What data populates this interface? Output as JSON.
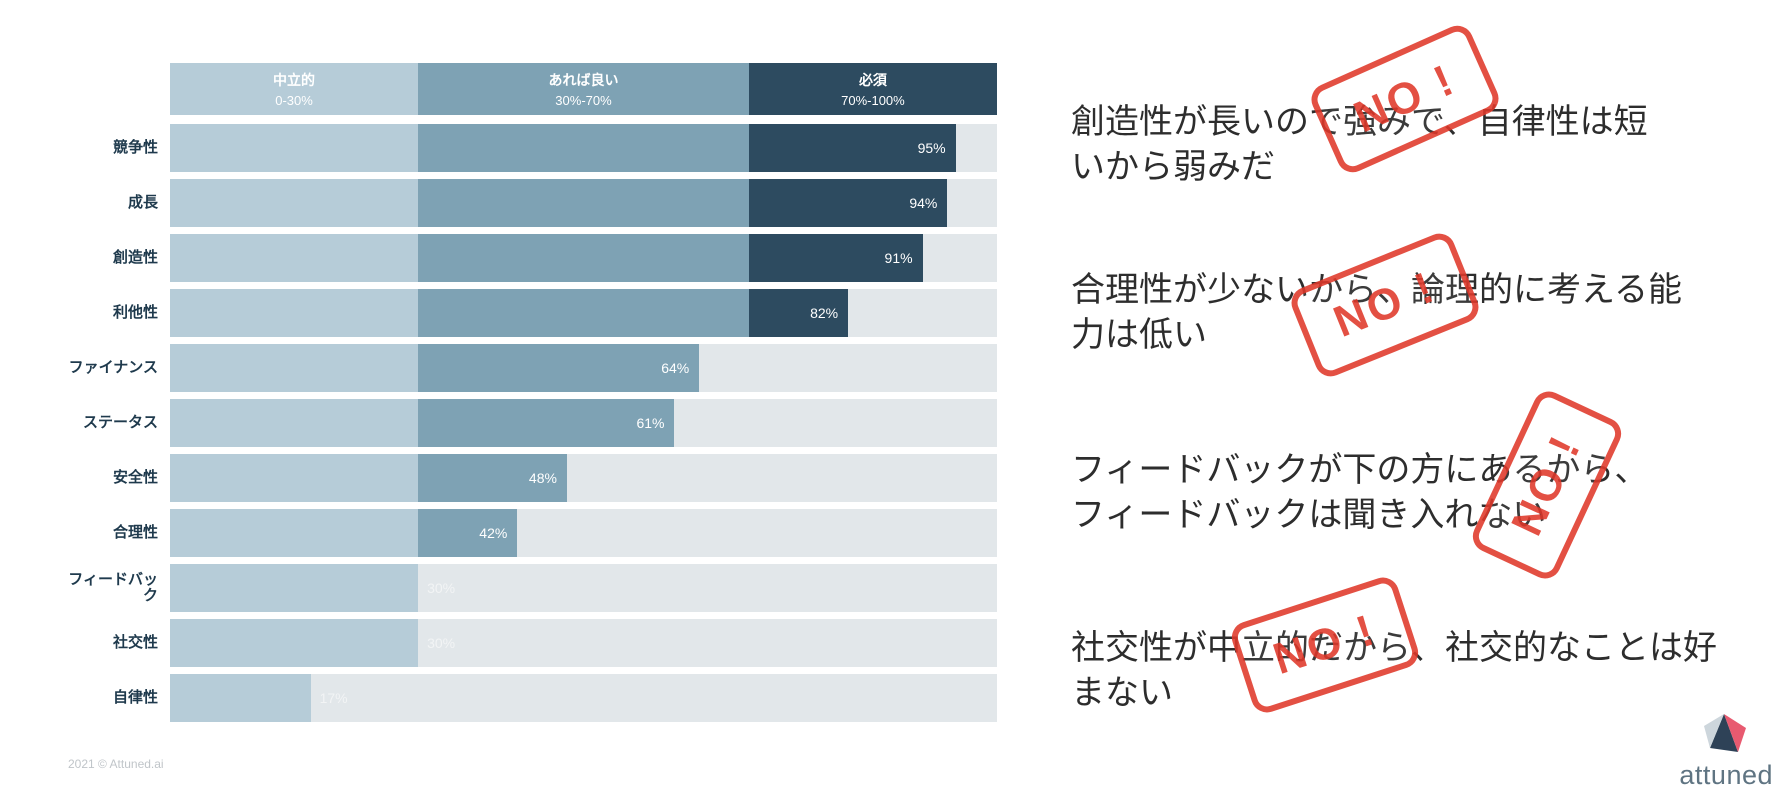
{
  "chart_data": {
    "type": "bar",
    "orientation": "horizontal",
    "title": "",
    "xlabel": "",
    "ylabel": "",
    "xlim": [
      0,
      100
    ],
    "value_suffix": "%",
    "track_color": "#e2e7ea",
    "categories": [
      "競争性",
      "成長",
      "創造性",
      "利他性",
      "ファイナンス",
      "ステータス",
      "安全性",
      "合理性",
      "フィードバック",
      "社交性",
      "自律性"
    ],
    "values": [
      95,
      94,
      91,
      82,
      64,
      61,
      48,
      42,
      30,
      30,
      17
    ],
    "zones": [
      {
        "label": "中立的",
        "range": "0-30%",
        "min": 0,
        "max": 30,
        "color": "#b6ccd8"
      },
      {
        "label": "あれば良い",
        "range": "30%-70%",
        "min": 30,
        "max": 70,
        "color": "#7ea2b4"
      },
      {
        "label": "必須",
        "range": "70%-100%",
        "min": 70,
        "max": 100,
        "color": "#2d4b60"
      }
    ]
  },
  "annotations": [
    {
      "text": "創造性が長いので強みで、自律性は短いから弱みだ",
      "stamp": "NO !"
    },
    {
      "text": "合理性が少ないから、論理的に考える能力は低い",
      "stamp": "NO !"
    },
    {
      "text": "フィードバックが下の方にあるから、フィードバックは聞き入れない",
      "stamp": "NO !"
    },
    {
      "text": "社交性が中立的だから、社交的なことは好まない",
      "stamp": "NO !"
    }
  ],
  "footer": {
    "copyright": "2021 © Attuned.ai"
  },
  "logo": {
    "text": "attuned"
  },
  "colors": {
    "stamp": "#e0382a",
    "text": "#2d2d2d",
    "logo_text": "#5f7482",
    "bar_dark": "#2d4b60",
    "bar_mid": "#7ea2b4",
    "bar_light": "#b6ccd8"
  }
}
